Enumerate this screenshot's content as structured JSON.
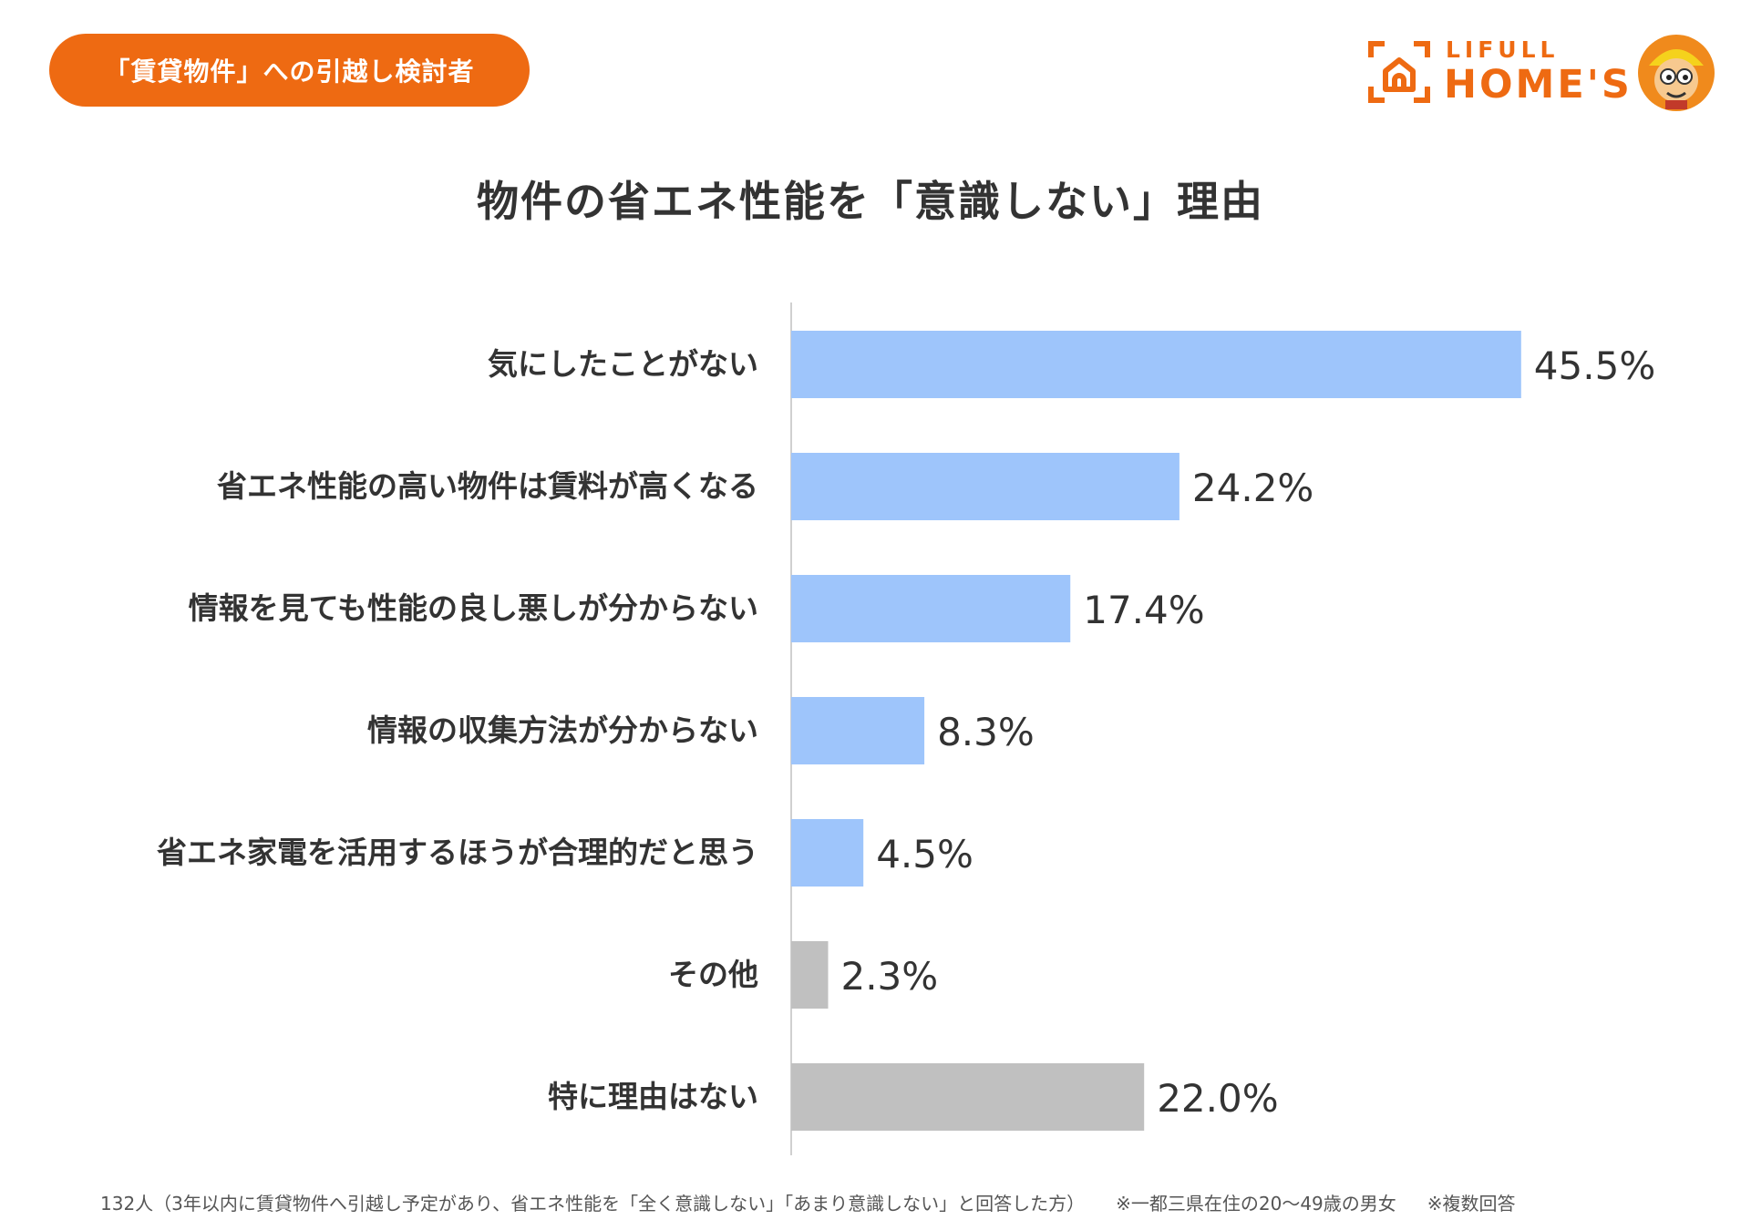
{
  "header": {
    "badge_label": "「賃貸物件」への引越し検討者",
    "logo_line1": "LIFULL",
    "logo_line2": "HOME'S"
  },
  "chart_data": {
    "type": "bar",
    "orientation": "horizontal",
    "title": "物件の省エネ性能を「意識しない」理由",
    "categories": [
      "気にしたことがない",
      "省エネ性能の高い物件は賃料が高くなる",
      "情報を見ても性能の良し悪しが分からない",
      "情報の収集方法が分からない",
      "省エネ家電を活用するほうが合理的だと思う",
      "その他",
      "特に理由はない"
    ],
    "values": [
      45.5,
      24.2,
      17.4,
      8.3,
      4.5,
      2.3,
      22.0
    ],
    "value_labels": [
      "45.5%",
      "24.2%",
      "17.4%",
      "8.3%",
      "4.5%",
      "2.3%",
      "22.0%"
    ],
    "bar_colors": [
      "#9ec5fb",
      "#9ec5fb",
      "#9ec5fb",
      "#9ec5fb",
      "#9ec5fb",
      "#c0c0c0",
      "#c0c0c0"
    ],
    "unit": "%",
    "grid": false,
    "legend": "none"
  },
  "footnote": {
    "sample": "132人（3年以内に賃貸物件へ引越し予定があり、省エネ性能を「全く意識しない」「あまり意識しない」と回答した方）",
    "note1": "※一都三県在住の20〜49歳の男女",
    "note2": "※複数回答"
  },
  "colors": {
    "accent": "#ee6a12",
    "bar_primary": "#9ec5fb",
    "bar_other": "#c0c0c0",
    "text": "#333333"
  }
}
